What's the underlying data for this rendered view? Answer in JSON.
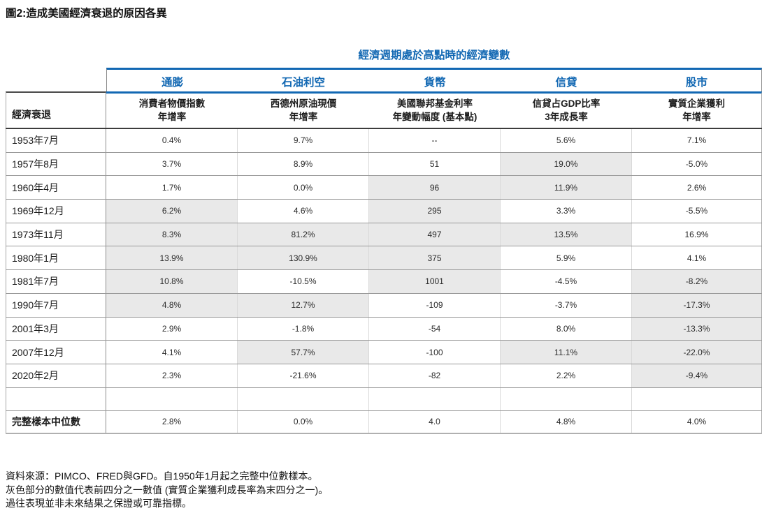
{
  "figure_title": "圖2:造成美國經濟衰退的原因各異",
  "table": {
    "type": "table",
    "header_title": "經濟週期處於高點時的經濟變數",
    "row_label_header": "經濟衰退",
    "groups": [
      {
        "label": "通膨",
        "sub_line1": "消費者物價指數",
        "sub_line2": "年增率"
      },
      {
        "label": "石油利空",
        "sub_line1": "西德州原油現價",
        "sub_line2": "年增率"
      },
      {
        "label": "貨幣",
        "sub_line1": "美國聯邦基金利率",
        "sub_line2": "年變動幅度 (基本點)"
      },
      {
        "label": "信貸",
        "sub_line1": "信貸占GDP比率",
        "sub_line2": "3年成長率"
      },
      {
        "label": "股市",
        "sub_line1": "實質企業獲利",
        "sub_line2": "年增率"
      }
    ],
    "rows": [
      {
        "label": "1953年7月",
        "values": [
          "0.4%",
          "9.7%",
          "--",
          "5.6%",
          "7.1%"
        ],
        "gray": [
          false,
          false,
          false,
          false,
          false
        ]
      },
      {
        "label": "1957年8月",
        "values": [
          "3.7%",
          "8.9%",
          "51",
          "19.0%",
          "-5.0%"
        ],
        "gray": [
          false,
          false,
          false,
          true,
          false
        ]
      },
      {
        "label": "1960年4月",
        "values": [
          "1.7%",
          "0.0%",
          "96",
          "11.9%",
          "2.6%"
        ],
        "gray": [
          false,
          false,
          true,
          true,
          false
        ]
      },
      {
        "label": "1969年12月",
        "values": [
          "6.2%",
          "4.6%",
          "295",
          "3.3%",
          "-5.5%"
        ],
        "gray": [
          true,
          false,
          true,
          false,
          false
        ]
      },
      {
        "label": "1973年11月",
        "values": [
          "8.3%",
          "81.2%",
          "497",
          "13.5%",
          "16.9%"
        ],
        "gray": [
          true,
          true,
          true,
          true,
          false
        ]
      },
      {
        "label": "1980年1月",
        "values": [
          "13.9%",
          "130.9%",
          "375",
          "5.9%",
          "4.1%"
        ],
        "gray": [
          true,
          true,
          true,
          false,
          false
        ]
      },
      {
        "label": "1981年7月",
        "values": [
          "10.8%",
          "-10.5%",
          "1001",
          "-4.5%",
          "-8.2%"
        ],
        "gray": [
          true,
          false,
          true,
          false,
          true
        ]
      },
      {
        "label": "1990年7月",
        "values": [
          "4.8%",
          "12.7%",
          "-109",
          "-3.7%",
          "-17.3%"
        ],
        "gray": [
          true,
          true,
          false,
          false,
          true
        ]
      },
      {
        "label": "2001年3月",
        "values": [
          "2.9%",
          "-1.8%",
          "-54",
          "8.0%",
          "-13.3%"
        ],
        "gray": [
          false,
          false,
          false,
          false,
          true
        ]
      },
      {
        "label": "2007年12月",
        "values": [
          "4.1%",
          "57.7%",
          "-100",
          "11.1%",
          "-22.0%"
        ],
        "gray": [
          false,
          true,
          false,
          true,
          true
        ]
      },
      {
        "label": "2020年2月",
        "values": [
          "2.3%",
          "-21.6%",
          "-82",
          "2.2%",
          "-9.4%"
        ],
        "gray": [
          false,
          false,
          false,
          false,
          true
        ]
      }
    ],
    "median_row": {
      "label": "完整樣本中位數",
      "values": [
        "2.8%",
        "0.0%",
        "4.0",
        "4.8%",
        "4.0%"
      ]
    }
  },
  "footnotes": [
    "資料來源：PIMCO、FRED與GFD。自1950年1月起之完整中位數樣本。",
    "灰色部分的數值代表前四分之一數值 (實質企業獲利成長率為末四分之一)。",
    "過往表現並非未來結果之保證或可靠指標。"
  ],
  "colors": {
    "accent_blue": "#1268B3",
    "gray_cell": "#E9E9E9",
    "heavy_rule": "#3C3C3C",
    "row_rule": "#9A9A9A"
  }
}
